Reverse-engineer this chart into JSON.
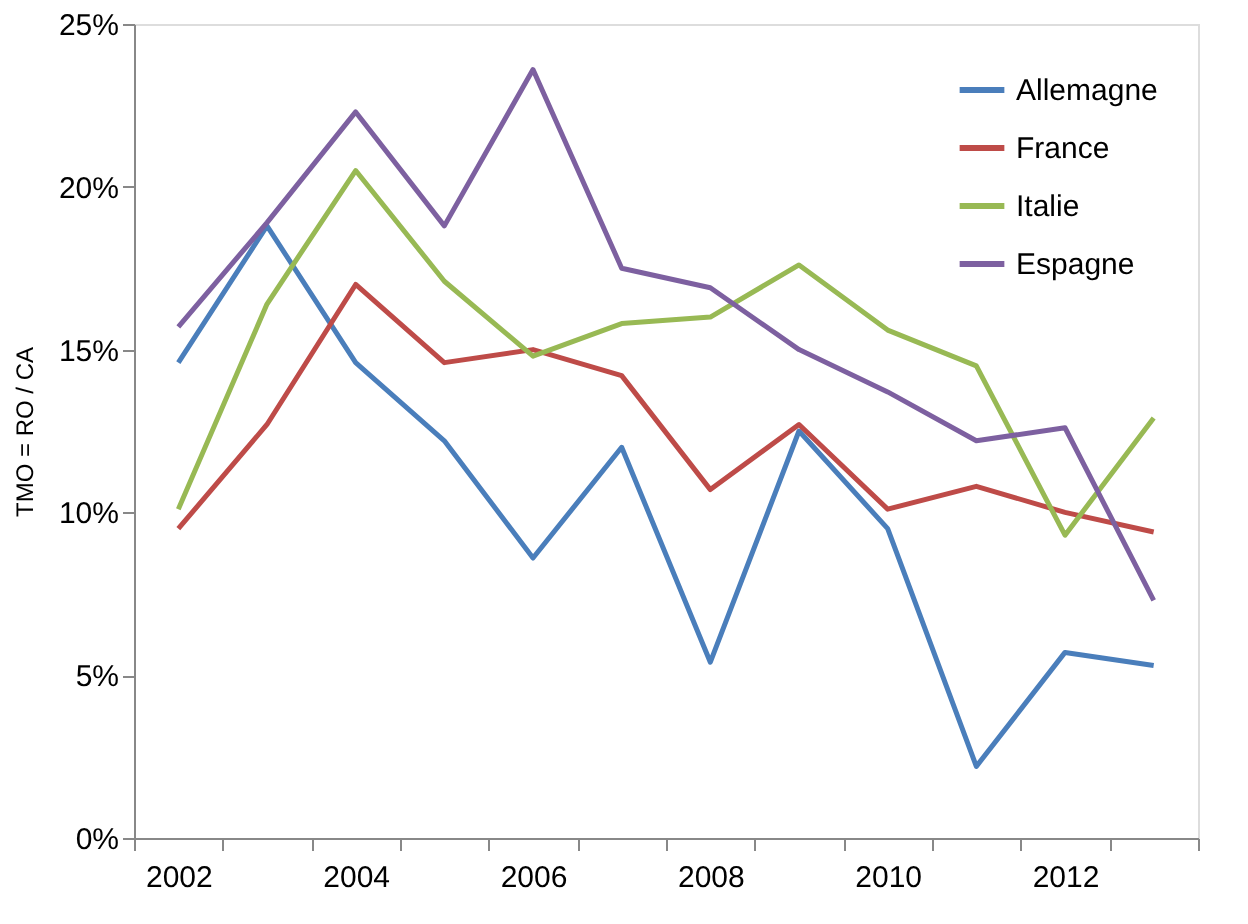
{
  "chart_data": {
    "type": "line",
    "ylabel": "TMO = RO / CA",
    "categories": [
      "2002",
      null,
      "2004",
      null,
      "2006",
      null,
      "2008",
      null,
      "2010",
      null,
      "2012",
      null
    ],
    "series": [
      {
        "name": "Allemagne",
        "color": "#4a7ebb",
        "values": [
          14.6,
          18.8,
          14.6,
          12.2,
          8.6,
          12.0,
          5.4,
          12.5,
          9.5,
          2.2,
          5.7,
          5.3
        ]
      },
      {
        "name": "France",
        "color": "#be4b48",
        "values": [
          9.5,
          12.7,
          17.0,
          14.6,
          15.0,
          14.2,
          10.7,
          12.7,
          10.1,
          10.8,
          10.0,
          9.4
        ]
      },
      {
        "name": "Italie",
        "color": "#98b954",
        "values": [
          10.1,
          16.4,
          20.5,
          17.1,
          14.8,
          15.8,
          16.0,
          17.6,
          15.6,
          14.5,
          9.3,
          12.9
        ]
      },
      {
        "name": "Espagne",
        "color": "#7d60a0",
        "values": [
          15.7,
          18.9,
          22.3,
          18.8,
          23.6,
          17.5,
          16.9,
          15.0,
          13.7,
          12.2,
          12.6,
          7.3
        ]
      }
    ],
    "ylim": [
      0,
      25
    ],
    "yticks": [
      {
        "value": 0,
        "label": "0%"
      },
      {
        "value": 5,
        "label": "5%"
      },
      {
        "value": 10,
        "label": "10%"
      },
      {
        "value": 15,
        "label": "15%"
      },
      {
        "value": 20,
        "label": "20%"
      },
      {
        "value": 25,
        "label": "25%"
      }
    ],
    "grid": false,
    "legend": "top right",
    "marker": "none",
    "line_style": "solid"
  }
}
